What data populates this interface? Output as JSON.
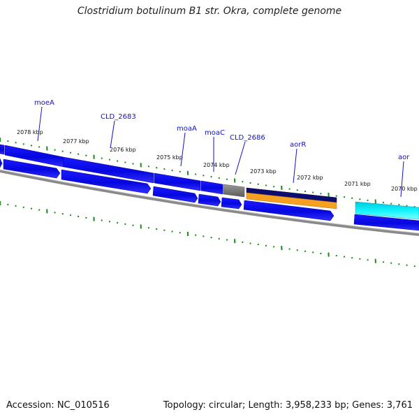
{
  "title": "Clostridium botulinum B1 str. Okra, complete genome",
  "footer": {
    "accession": "Accession: NC_010516",
    "summary": "Topology: circular; Length: 3,958,233 bp; Genes: 3,761"
  },
  "colors": {
    "gene_forward": "#0a0ae8",
    "gene_dark": "#0c0c70",
    "pseudo_gray": "#7c7c7c",
    "orange": "#f5a020",
    "cyan": "#00e8f0",
    "backbone": "#8a8a8a",
    "tick_green": "#1a8a1a",
    "label_blue": "#1010c8"
  },
  "kbp_labels": [
    "2078 kbp",
    "2077 kbp",
    "2076 kbp",
    "2075 kbp",
    "2074 kbp",
    "2073 kbp",
    "2072 kbp",
    "2071 kbp",
    "2070 kbp"
  ],
  "gene_labels": [
    "moeA",
    "CLD_2683",
    "moaA",
    "moaC",
    "CLD_2686",
    "aorR",
    "aor"
  ]
}
